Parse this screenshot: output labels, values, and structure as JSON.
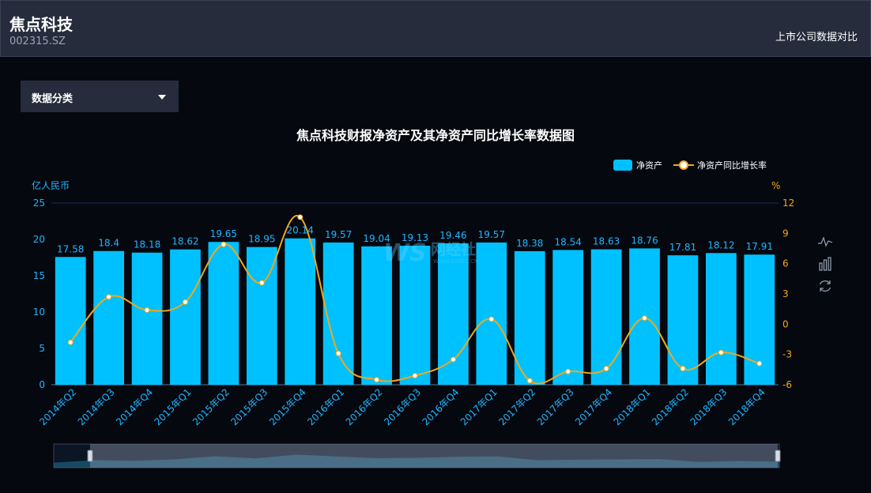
{
  "header": {
    "company_name": "焦点科技",
    "stock_code": "002315.SZ",
    "compare_link": "上市公司数据对比"
  },
  "filter": {
    "category_label": "数据分类"
  },
  "watermark": {
    "brand": "网经社",
    "url": "WWW.100EC.CN"
  },
  "toolbox": {
    "icons": [
      "line-chart-icon",
      "bar-chart-icon",
      "refresh-icon"
    ]
  },
  "colors": {
    "bar": "#00c1ff",
    "line": "#f0a81b",
    "axis_text": "#1fb6ff",
    "right_axis_text": "#f0a81b"
  },
  "chart_data": {
    "type": "bar",
    "title": "焦点科技财报净资产及其净资产同比增长率数据图",
    "categories": [
      "2014年Q2",
      "2014年Q3",
      "2014年Q4",
      "2015年Q1",
      "2015年Q2",
      "2015年Q3",
      "2015年Q4",
      "2016年Q1",
      "2016年Q2",
      "2016年Q3",
      "2016年Q4",
      "2017年Q1",
      "2017年Q2",
      "2017年Q3",
      "2017年Q4",
      "2018年Q1",
      "2018年Q2",
      "2018年Q3",
      "2018年Q4"
    ],
    "series": [
      {
        "name": "净资产",
        "type": "bar",
        "axis": "left",
        "values": [
          17.58,
          18.4,
          18.18,
          18.62,
          19.65,
          18.95,
          20.14,
          19.57,
          19.04,
          19.13,
          19.46,
          19.57,
          18.38,
          18.54,
          18.63,
          18.76,
          17.81,
          18.12,
          17.91
        ]
      },
      {
        "name": "净资产同比增长率",
        "type": "line",
        "axis": "right",
        "values": [
          -1.8,
          2.7,
          1.4,
          2.2,
          7.9,
          4.1,
          10.6,
          -2.9,
          -5.5,
          -5.1,
          -3.5,
          0.5,
          -5.6,
          -4.7,
          -4.4,
          0.6,
          -4.4,
          -2.8,
          -3.9
        ]
      }
    ],
    "left_axis": {
      "unit": "亿人民币",
      "ylim": [
        0,
        25
      ],
      "ticks": [
        0,
        5,
        10,
        15,
        20,
        25
      ]
    },
    "right_axis": {
      "unit": "%",
      "ylim": [
        -6,
        12
      ],
      "ticks": [
        -6,
        -3,
        0,
        3,
        6,
        9,
        12
      ]
    },
    "legend": "top-right",
    "data_labels": true,
    "grid": false
  }
}
